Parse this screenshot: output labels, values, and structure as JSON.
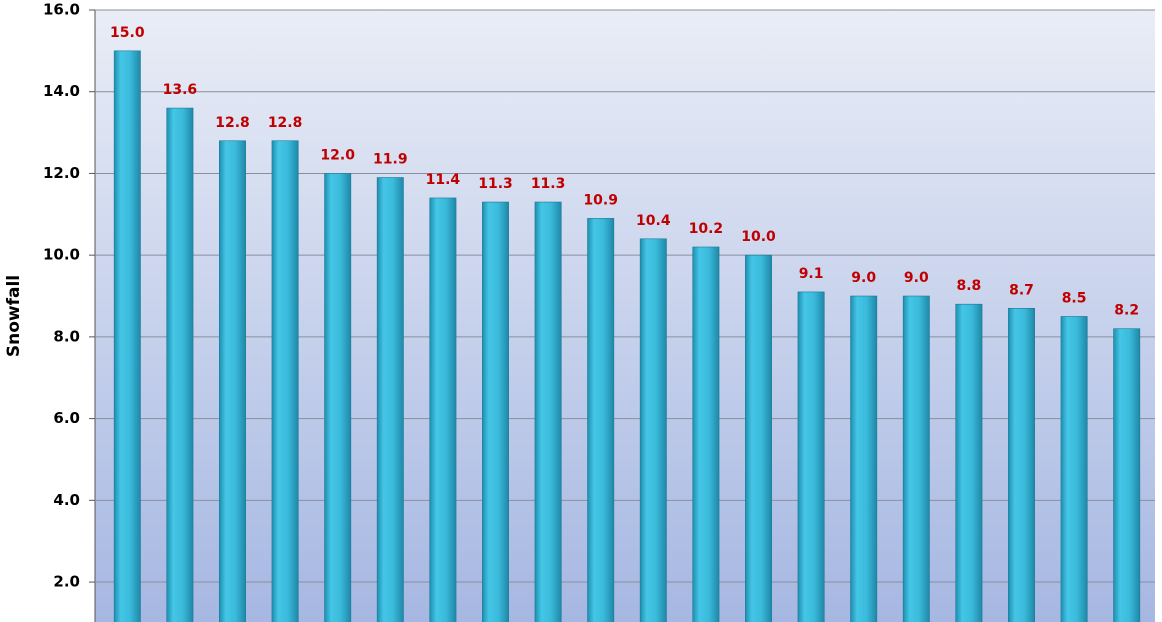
{
  "chart_data": {
    "type": "bar",
    "y_label": "Snowfall",
    "values": [
      15.0,
      13.6,
      12.8,
      12.8,
      12.0,
      11.9,
      11.4,
      11.3,
      11.3,
      10.9,
      10.4,
      10.2,
      10.0,
      9.1,
      9.0,
      9.0,
      8.8,
      8.7,
      8.5,
      8.2
    ],
    "value_labels": [
      "15.0",
      "13.6",
      "12.8",
      "12.8",
      "12.0",
      "11.9",
      "11.4",
      "11.3",
      "11.3",
      "10.9",
      "10.4",
      "10.2",
      "10.0",
      "9.1",
      "9.0",
      "9.0",
      "8.8",
      "8.7",
      "8.5",
      "8.2"
    ],
    "color": "#3bbbdc",
    "ylim": [
      1.0,
      16.0
    ],
    "yticks": [
      {
        "value": 2,
        "label": "2.0"
      },
      {
        "value": 4,
        "label": "4.0"
      },
      {
        "value": 6,
        "label": "6.0"
      },
      {
        "value": 8,
        "label": "8.0"
      },
      {
        "value": 10,
        "label": "10.0"
      },
      {
        "value": 12,
        "label": "12.0"
      },
      {
        "value": 14,
        "label": "14.0"
      },
      {
        "value": 16,
        "label": "16.0"
      }
    ],
    "grid": true
  }
}
